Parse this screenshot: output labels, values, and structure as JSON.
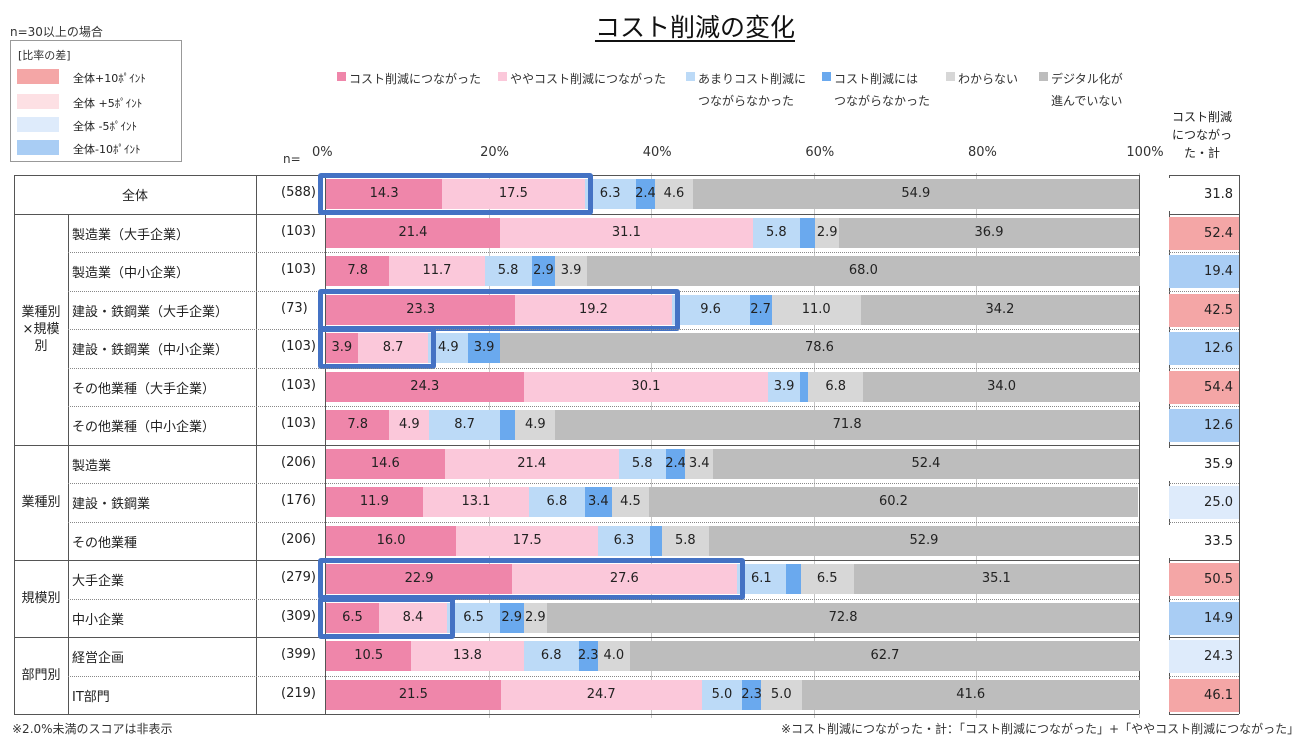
{
  "title": "コスト削減の変化",
  "sample_note": "n=30以上の場合",
  "diff_legend": {
    "title": "[比率の差]",
    "items": [
      {
        "label": "全体+10ﾎﾟｲﾝﾄ",
        "color": "#f4a6a6"
      },
      {
        "label": "全体 +5ﾎﾟｲﾝﾄ",
        "color": "#fde0e4"
      },
      {
        "label": "全体 -5ﾎﾟｲﾝﾄ",
        "color": "#deebfb"
      },
      {
        "label": "全体-10ﾎﾟｲﾝﾄ",
        "color": "#a9cdf4"
      }
    ]
  },
  "n_label": "n=",
  "summary_header": [
    "コスト削減",
    "につながっ",
    "た・計"
  ],
  "footnote_left": "※2.0%未満のスコアは非表示",
  "footnote_right": "※コスト削減につながった・計：「コスト削減につながった」+「ややコスト削減につながった」",
  "chart_data": {
    "type": "bar",
    "orientation": "horizontal",
    "stacked": true,
    "title": "コスト削減の変化",
    "xlim": [
      0,
      100
    ],
    "x_ticks": [
      "0%",
      "20%",
      "40%",
      "60%",
      "80%",
      "100%"
    ],
    "series": [
      {
        "name": "コスト削減につながった",
        "legend_lines": [
          "コスト削減につながった"
        ],
        "color": "#ef86aa"
      },
      {
        "name": "ややコスト削減につながった",
        "legend_lines": [
          "ややコスト削減につながった"
        ],
        "color": "#fbc8da"
      },
      {
        "name": "あまりコスト削減につながらなかった",
        "legend_lines": [
          "あまりコスト削減に",
          "つながらなかった"
        ],
        "color": "#bcdaf7"
      },
      {
        "name": "コスト削減にはつながらなかった",
        "legend_lines": [
          "コスト削減には",
          "つながらなかった"
        ],
        "color": "#6aa9ee"
      },
      {
        "name": "わからない",
        "legend_lines": [
          "わからない"
        ],
        "color": "#d7d7d7"
      },
      {
        "name": "デジタル化が進んでいない",
        "legend_lines": [
          "デジタル化が",
          "進んでいない"
        ],
        "color": "#bdbdbd"
      }
    ],
    "groups": [
      {
        "label": "",
        "rows": [
          0
        ]
      },
      {
        "label": "業種別×規模別",
        "label_lines": [
          "業種別",
          "×規模",
          "別"
        ],
        "rows": [
          1,
          2,
          3,
          4,
          5,
          6
        ]
      },
      {
        "label": "業種別",
        "label_lines": [
          "業種別"
        ],
        "rows": [
          7,
          8,
          9
        ]
      },
      {
        "label": "規模別",
        "label_lines": [
          "規模別"
        ],
        "rows": [
          10,
          11
        ]
      },
      {
        "label": "部門別",
        "label_lines": [
          "部門別"
        ],
        "rows": [
          12,
          13
        ]
      }
    ],
    "rows": [
      {
        "label": "全体",
        "n": "(588)",
        "values": [
          14.3,
          17.5,
          6.3,
          2.4,
          4.6,
          54.9
        ],
        "labels": [
          "14.3",
          "17.5",
          "6.3",
          "2.4",
          "4.6",
          "54.9"
        ],
        "sum": "31.8",
        "sum_color": "#ffffff",
        "highlight": true
      },
      {
        "label": "製造業（大手企業）",
        "n": "(103)",
        "values": [
          21.4,
          31.1,
          5.8,
          1.9,
          2.9,
          36.9
        ],
        "labels": [
          "21.4",
          "31.1",
          "5.8",
          "",
          "2.9",
          "36.9"
        ],
        "sum": "52.4",
        "sum_color": "#f4a6a6",
        "highlight": false
      },
      {
        "label": "製造業（中小企業）",
        "n": "(103)",
        "values": [
          7.8,
          11.7,
          5.8,
          2.9,
          3.9,
          68.0
        ],
        "labels": [
          "7.8",
          "11.7",
          "5.8",
          "2.9",
          "3.9",
          "68.0"
        ],
        "sum": "19.4",
        "sum_color": "#a9cdf4",
        "highlight": false
      },
      {
        "label": "建設・鉄鋼業（大手企業）",
        "n": "(73)",
        "values": [
          23.3,
          19.2,
          9.6,
          2.7,
          11.0,
          34.2
        ],
        "labels": [
          "23.3",
          "19.2",
          "9.6",
          "2.7",
          "11.0",
          "34.2"
        ],
        "sum": "42.5",
        "sum_color": "#f4a6a6",
        "highlight": true
      },
      {
        "label": "建設・鉄鋼業（中小企業）",
        "n": "(103)",
        "values": [
          3.9,
          8.7,
          4.9,
          3.9,
          0.0,
          78.6
        ],
        "labels": [
          "3.9",
          "8.7",
          "4.9",
          "3.9",
          "",
          "78.6"
        ],
        "sum": "12.6",
        "sum_color": "#a9cdf4",
        "highlight": true
      },
      {
        "label": "その他業種（大手企業）",
        "n": "(103)",
        "values": [
          24.3,
          30.1,
          3.9,
          1.0,
          6.8,
          34.0
        ],
        "labels": [
          "24.3",
          "30.1",
          "3.9",
          "",
          "6.8",
          "34.0"
        ],
        "sum": "54.4",
        "sum_color": "#f4a6a6",
        "highlight": false
      },
      {
        "label": "その他業種（中小企業）",
        "n": "(103)",
        "values": [
          7.8,
          4.9,
          8.7,
          1.9,
          4.9,
          71.8
        ],
        "labels": [
          "7.8",
          "4.9",
          "8.7",
          "",
          "4.9",
          "71.8"
        ],
        "sum": "12.6",
        "sum_color": "#a9cdf4",
        "highlight": false
      },
      {
        "label": "製造業",
        "n": "(206)",
        "values": [
          14.6,
          21.4,
          5.8,
          2.4,
          3.4,
          52.4
        ],
        "labels": [
          "14.6",
          "21.4",
          "5.8",
          "2.4",
          "3.4",
          "52.4"
        ],
        "sum": "35.9",
        "sum_color": "#ffffff",
        "highlight": false
      },
      {
        "label": "建設・鉄鋼業",
        "n": "(176)",
        "values": [
          11.9,
          13.1,
          6.8,
          3.4,
          4.5,
          60.2
        ],
        "labels": [
          "11.9",
          "13.1",
          "6.8",
          "3.4",
          "4.5",
          "60.2"
        ],
        "sum": "25.0",
        "sum_color": "#deebfb",
        "highlight": false
      },
      {
        "label": "その他業種",
        "n": "(206)",
        "values": [
          16.0,
          17.5,
          6.3,
          1.5,
          5.8,
          52.9
        ],
        "labels": [
          "16.0",
          "17.5",
          "6.3",
          "",
          "5.8",
          "52.9"
        ],
        "sum": "33.5",
        "sum_color": "#ffffff",
        "highlight": false
      },
      {
        "label": "大手企業",
        "n": "(279)",
        "values": [
          22.9,
          27.6,
          6.1,
          1.8,
          6.5,
          35.1
        ],
        "labels": [
          "22.9",
          "27.6",
          "6.1",
          "",
          "6.5",
          "35.1"
        ],
        "sum": "50.5",
        "sum_color": "#f4a6a6",
        "highlight": true
      },
      {
        "label": "中小企業",
        "n": "(309)",
        "values": [
          6.5,
          8.4,
          6.5,
          2.9,
          2.9,
          72.8
        ],
        "labels": [
          "6.5",
          "8.4",
          "6.5",
          "2.9",
          "2.9",
          "72.8"
        ],
        "sum": "14.9",
        "sum_color": "#a9cdf4",
        "highlight": true
      },
      {
        "label": "経営企画",
        "n": "(399)",
        "values": [
          10.5,
          13.8,
          6.8,
          2.3,
          4.0,
          62.7
        ],
        "labels": [
          "10.5",
          "13.8",
          "6.8",
          "2.3",
          "4.0",
          "62.7"
        ],
        "sum": "24.3",
        "sum_color": "#deebfb",
        "highlight": false
      },
      {
        "label": "IT部門",
        "n": "(219)",
        "values": [
          21.5,
          24.7,
          5.0,
          2.3,
          5.0,
          41.6
        ],
        "labels": [
          "21.5",
          "24.7",
          "5.0",
          "2.3",
          "5.0",
          "41.6"
        ],
        "sum": "46.1",
        "sum_color": "#f4a6a6",
        "highlight": false
      }
    ]
  }
}
